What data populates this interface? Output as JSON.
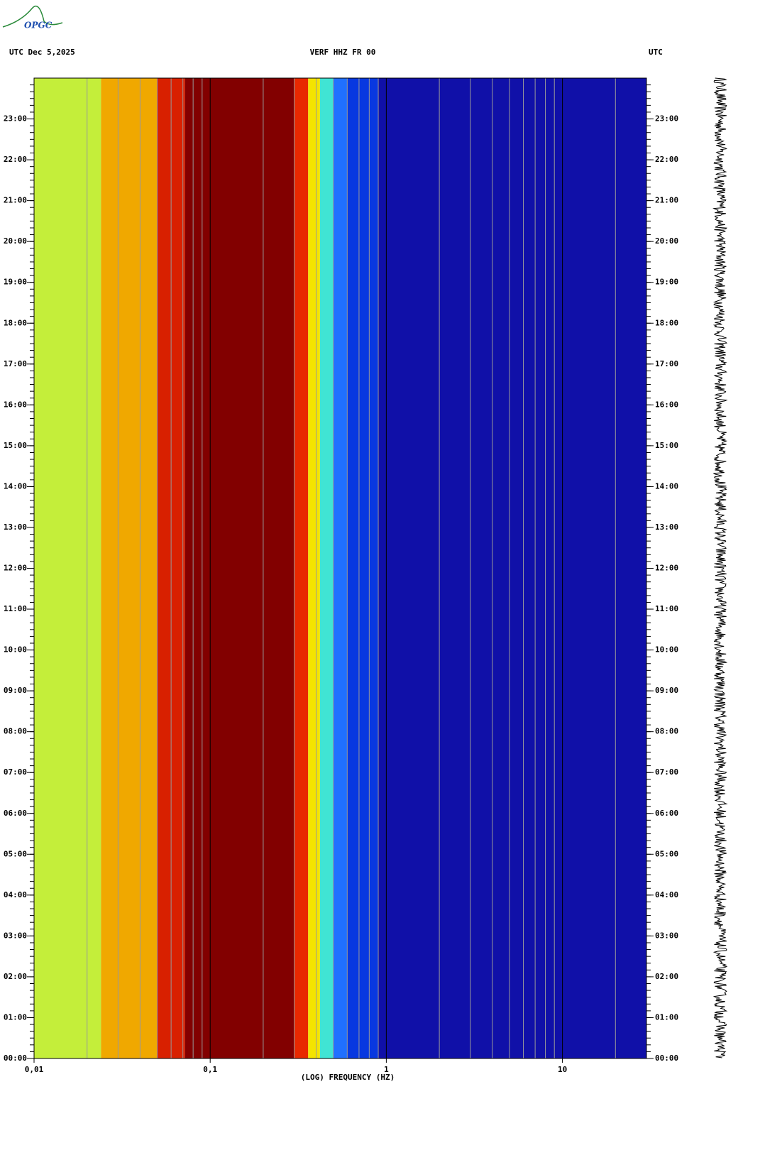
{
  "logo": "OPGC",
  "chart_data": {
    "type": "spectrogram",
    "title": "VERF HHZ FR 00",
    "left_label": "UTC  Dec 5,2025",
    "right_label": "UTC",
    "xlabel": "(LOG) FREQUENCY (HZ)",
    "xscale": "log",
    "xlim": [
      0.01,
      30
    ],
    "xticks": [
      {
        "value": 0.01,
        "label": "0,01"
      },
      {
        "value": 0.1,
        "label": "0,1"
      },
      1,
      10
    ],
    "minor_grid": true,
    "ylim": [
      0,
      24
    ],
    "yminor_per_tick": 6,
    "yticks": [
      {
        "value": 0,
        "label": "00:00"
      },
      {
        "value": 1,
        "label": "01:00"
      },
      {
        "value": 2,
        "label": "02:00"
      },
      {
        "value": 3,
        "label": "03:00"
      },
      {
        "value": 4,
        "label": "04:00"
      },
      {
        "value": 5,
        "label": "05:00"
      },
      {
        "value": 6,
        "label": "06:00"
      },
      {
        "value": 7,
        "label": "07:00"
      },
      {
        "value": 8,
        "label": "08:00"
      },
      {
        "value": 9,
        "label": "09:00"
      },
      {
        "value": 10,
        "label": "10:00"
      },
      {
        "value": 11,
        "label": "11:00"
      },
      {
        "value": 12,
        "label": "12:00"
      },
      {
        "value": 13,
        "label": "13:00"
      },
      {
        "value": 14,
        "label": "14:00"
      },
      {
        "value": 15,
        "label": "15:00"
      },
      {
        "value": 16,
        "label": "16:00"
      },
      {
        "value": 17,
        "label": "17:00"
      },
      {
        "value": 18,
        "label": "18:00"
      },
      {
        "value": 19,
        "label": "19:00"
      },
      {
        "value": 20,
        "label": "20:00"
      },
      {
        "value": 21,
        "label": "21:00"
      },
      {
        "value": 22,
        "label": "22:00"
      },
      {
        "value": 23,
        "label": "23:00"
      }
    ],
    "bands": [
      {
        "from": 0.01,
        "to": 0.024,
        "color": "#c4ee3a"
      },
      {
        "from": 0.024,
        "to": 0.05,
        "color": "#f0a800"
      },
      {
        "from": 0.05,
        "to": 0.072,
        "color": "#d82000"
      },
      {
        "from": 0.072,
        "to": 0.3,
        "color": "#820000"
      },
      {
        "from": 0.3,
        "to": 0.36,
        "color": "#e82800"
      },
      {
        "from": 0.36,
        "to": 0.42,
        "color": "#f4e400"
      },
      {
        "from": 0.42,
        "to": 0.5,
        "color": "#40e4d4"
      },
      {
        "from": 0.5,
        "to": 0.6,
        "color": "#2070ff"
      },
      {
        "from": 0.6,
        "to": 0.9,
        "color": "#0838e0"
      },
      {
        "from": 0.9,
        "to": 30,
        "color": "#1010a8"
      }
    ]
  }
}
